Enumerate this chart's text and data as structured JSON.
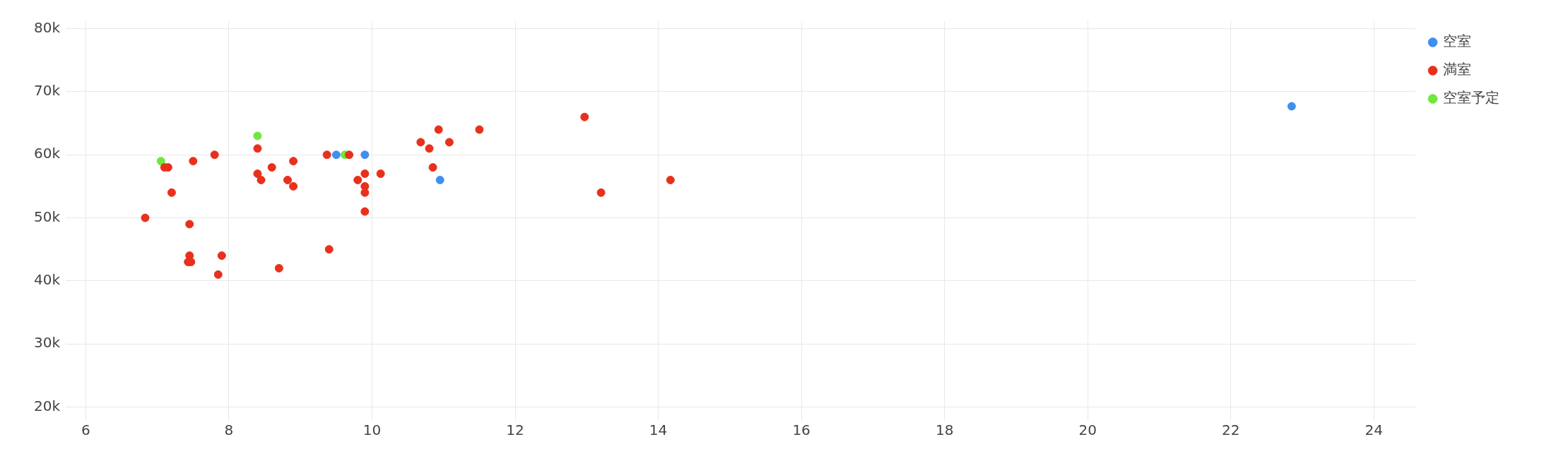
{
  "chart_data": {
    "type": "scatter",
    "xlim": [
      5.72,
      24.58
    ],
    "ylim": [
      17800,
      81200
    ],
    "xticks": [
      6,
      8,
      10,
      12,
      14,
      16,
      18,
      20,
      22,
      24
    ],
    "yticks": [
      {
        "value": 20000,
        "label": "20k"
      },
      {
        "value": 30000,
        "label": "30k"
      },
      {
        "value": 40000,
        "label": "40k"
      },
      {
        "value": 50000,
        "label": "50k"
      },
      {
        "value": 60000,
        "label": "60k"
      },
      {
        "value": 70000,
        "label": "70k"
      },
      {
        "value": 80000,
        "label": "80k"
      }
    ],
    "grid": true,
    "legend": "top right",
    "marker": "circle",
    "series": [
      {
        "name": "空室",
        "color": "#3f8ff0",
        "x": [
          9.5,
          9.9,
          10.95,
          22.85
        ],
        "values": [
          60000,
          60000,
          56000,
          67700
        ]
      },
      {
        "name": "満室",
        "color": "#e8301c",
        "x": [
          6.83,
          7.1,
          7.15,
          7.2,
          7.45,
          7.5,
          7.45,
          7.43,
          7.47,
          7.8,
          7.85,
          7.9,
          8.4,
          8.4,
          8.45,
          8.6,
          8.7,
          8.82,
          8.9,
          8.9,
          9.37,
          9.4,
          9.68,
          9.8,
          9.9,
          9.9,
          9.9,
          9.9,
          10.12,
          10.68,
          10.8,
          10.85,
          10.93,
          11.08,
          11.5,
          12.97,
          13.2,
          14.17
        ],
        "values": [
          50000,
          58000,
          58000,
          54000,
          49000,
          59000,
          44000,
          43000,
          43000,
          60000,
          41000,
          44000,
          61000,
          57000,
          56000,
          58000,
          42000,
          56000,
          59000,
          55000,
          60000,
          45000,
          60000,
          56000,
          57000,
          55000,
          54000,
          51000,
          57000,
          62000,
          61000,
          58000,
          64000,
          62000,
          64000,
          66000,
          54000,
          56000
        ]
      },
      {
        "name": "空室予定",
        "color": "#6ee83a",
        "x": [
          7.05,
          8.4,
          9.62
        ],
        "values": [
          59000,
          63000,
          60000
        ]
      }
    ]
  }
}
